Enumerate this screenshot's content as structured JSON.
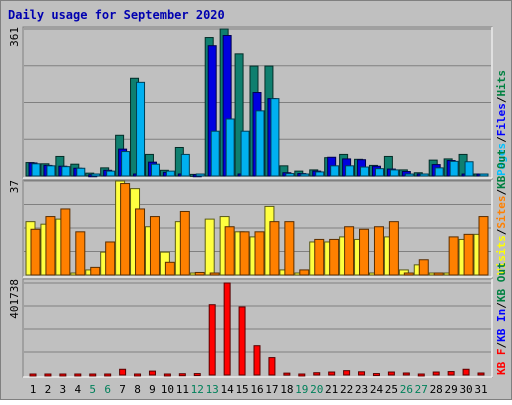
{
  "chart_data": {
    "type": "bar",
    "title": "Daily usage for September 2020",
    "categories": [
      "1",
      "2",
      "3",
      "4",
      "5",
      "6",
      "7",
      "8",
      "9",
      "10",
      "11",
      "12",
      "13",
      "14",
      "15",
      "16",
      "17",
      "18",
      "19",
      "20",
      "21",
      "22",
      "23",
      "24",
      "25",
      "26",
      "27",
      "28",
      "29",
      "30",
      "31"
    ],
    "weekend_days": [
      "5",
      "6",
      "12",
      "13",
      "19",
      "20",
      "26",
      "27"
    ],
    "panels": [
      {
        "id": "hits",
        "max_label": "361",
        "ylim": [
          0,
          361
        ],
        "legend": [
          {
            "text": "Pages",
            "color": "#00c0ff"
          },
          {
            "text": "Files",
            "color": "#0000ff"
          },
          {
            "text": "Hits",
            "color": "#008040"
          }
        ],
        "series": [
          {
            "name": "Hits",
            "color": "#0f7f6f",
            "values": [
              33,
              30,
              48,
              29,
              7,
              20,
              100,
              240,
              53,
              14,
              70,
              4,
              340,
              361,
              300,
              270,
              270,
              25,
              12,
              15,
              45,
              53,
              41,
              26,
              48,
              15,
              8,
              39,
              42,
              53,
              0
            ]
          },
          {
            "name": "Files",
            "color": "#0000e0",
            "values": [
              32,
              26,
              24,
              19,
              3,
              14,
              66,
              0,
              34,
              9,
              0,
              3,
              320,
              345,
              0,
              205,
              190,
              8,
              6,
              12,
              46,
              42,
              40,
              24,
              17,
              11,
              0,
              28,
              38,
              0,
              0
            ]
          },
          {
            "name": "Pages",
            "color": "#00b0f0",
            "values": [
              30,
              25,
              23,
              19,
              0,
              12,
              60,
              230,
              29,
              12,
              53,
              0,
              110,
              140,
              110,
              160,
              190,
              6,
              0,
              10,
              25,
              25,
              22,
              18,
              15,
              0,
              0,
              20,
              36,
              35,
              0
            ]
          }
        ]
      },
      {
        "id": "visits",
        "max_label": "37",
        "ylim": [
          0,
          37
        ],
        "legend": [
          {
            "text": "Visits",
            "color": "#ffff00"
          },
          {
            "text": "Sites",
            "color": "#ff8000"
          },
          {
            "text": "KB Out",
            "color": "#008040"
          }
        ],
        "series": [
          {
            "name": "Visits",
            "color": "#ffff40",
            "values": [
              21,
              20,
              22,
              0,
              2,
              9,
              37,
              34,
              19,
              9,
              21,
              0,
              22,
              23,
              17,
              15,
              27,
              2,
              0,
              13,
              13,
              15,
              14,
              0,
              15,
              2,
              4,
              0,
              0,
              14,
              16
            ]
          },
          {
            "name": "Sites",
            "color": "#ff8000",
            "values": [
              18,
              23,
              26,
              17,
              3,
              13,
              36,
              26,
              23,
              5,
              25,
              1,
              0,
              19,
              17,
              17,
              21,
              21,
              2,
              14,
              14,
              19,
              18,
              19,
              21,
              0,
              6,
              0,
              15,
              16,
              23
            ]
          }
        ]
      },
      {
        "id": "kbytes",
        "max_label": "401738",
        "ylim": [
          0,
          401738
        ],
        "legend": [
          {
            "text": "KB F",
            "color": "#ff0000"
          },
          {
            "text": "KB In",
            "color": "#0000ff"
          },
          {
            "text": "KB Out",
            "color": "#008040"
          }
        ],
        "series": [
          {
            "name": "KB F",
            "color": "#ff0000",
            "values": [
              3300,
              4100,
              4100,
              3300,
              2100,
              3700,
              25000,
              4100,
              17000,
              4200,
              5600,
              6200,
              307000,
              401738,
              297000,
              128000,
              76000,
              8200,
              3900,
              10000,
              13000,
              19000,
              14000,
              6300,
              13000,
              8800,
              3400,
              13000,
              15000,
              25000,
              0
            ]
          }
        ]
      }
    ]
  }
}
